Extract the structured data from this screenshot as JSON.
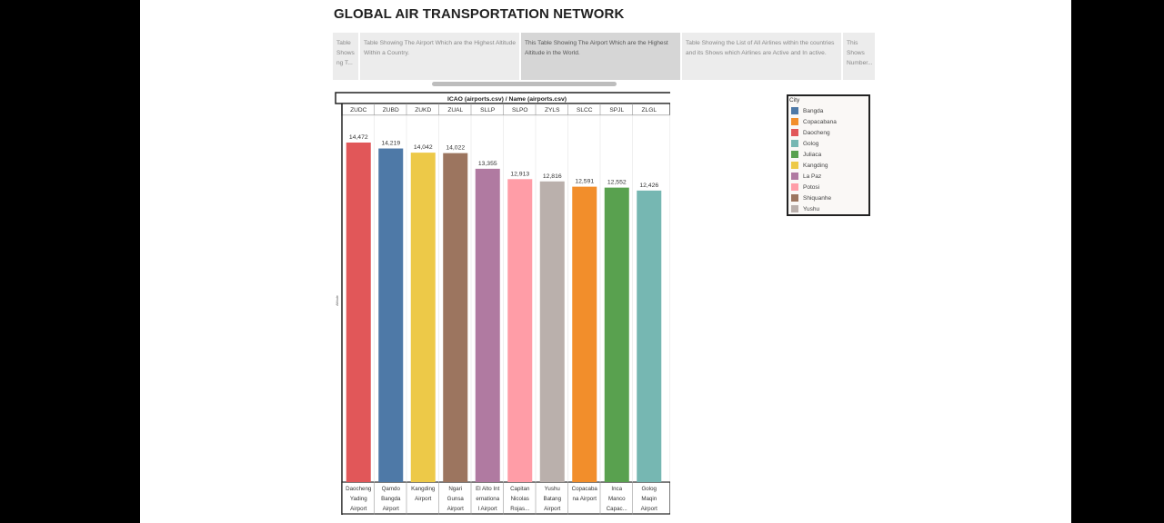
{
  "title": "GLOBAL AIR TRANSPORTATION NETWORK",
  "story_points": [
    {
      "text": "Table Shows ng T...",
      "active": false,
      "w": 30
    },
    {
      "text": "Table Showing The Airport Which are the Highest Altitude Within a Country.",
      "active": false,
      "w": 177
    },
    {
      "text": "This Table Showing The Airport Which are the Highest Altitude in the World.",
      "active": true,
      "w": 177
    },
    {
      "text": "Table Showing the List of All Airlines within the countries and its Shows which Airlines are Active and In active.",
      "active": false,
      "w": 177
    },
    {
      "text": "This Shows Number...",
      "active": false,
      "w": 37
    }
  ],
  "legend": {
    "title": "City",
    "items": [
      {
        "label": "Bangda",
        "color": "#4e79a7"
      },
      {
        "label": "Copacabana",
        "color": "#f28e2b"
      },
      {
        "label": "Daocheng",
        "color": "#e15759"
      },
      {
        "label": "Golog",
        "color": "#76b7b2"
      },
      {
        "label": "Juliaca",
        "color": "#59a14f"
      },
      {
        "label": "Kangding",
        "color": "#edc948"
      },
      {
        "label": "La Paz",
        "color": "#b07aa1"
      },
      {
        "label": "Potosi",
        "color": "#ff9da7"
      },
      {
        "label": "Shiquanhe",
        "color": "#9c755f"
      },
      {
        "label": "Yushu",
        "color": "#bab0ac"
      }
    ]
  },
  "chart_data": {
    "type": "bar",
    "header": "ICAO (airports.csv)  /  Name (airports.csv)",
    "ylabel": "Altitude",
    "ylim": [
      0,
      14472
    ],
    "categories": [
      "ZUDC",
      "ZUBD",
      "ZUKD",
      "ZUAL",
      "SLLP",
      "SLPO",
      "ZYLS",
      "SLCC",
      "SPJL",
      "ZLGL"
    ],
    "names": [
      [
        "Daocheng",
        "Yading",
        "Airport"
      ],
      [
        "Qamdo",
        "Bangda",
        "Airport"
      ],
      [
        "Kangding",
        "Airport",
        ""
      ],
      [
        "Ngari",
        "Gunsa",
        "Airport"
      ],
      [
        "El Alto Int",
        "ernationa",
        "l Airport"
      ],
      [
        "Capitan",
        "Nicolas",
        "Rojas..."
      ],
      [
        "Yushu",
        "Batang",
        "Airport"
      ],
      [
        "Copacaba",
        "na Airport",
        ""
      ],
      [
        "Inca",
        "Manco",
        "Capac..."
      ],
      [
        "Golog",
        "Maqin",
        "Airport"
      ]
    ],
    "cities": [
      "Daocheng",
      "Bangda",
      "Kangding",
      "Shiquanhe",
      "La Paz",
      "Potosi",
      "Yushu",
      "Copacabana",
      "Juliaca",
      "Golog"
    ],
    "values": [
      14472,
      14219,
      14042,
      14022,
      13355,
      12913,
      12816,
      12591,
      12552,
      12426
    ],
    "value_labels": [
      "14,472",
      "14,219",
      "14,042",
      "14,022",
      "13,355",
      "12,913",
      "12,816",
      "12,591",
      "12,552",
      "12,426"
    ]
  }
}
